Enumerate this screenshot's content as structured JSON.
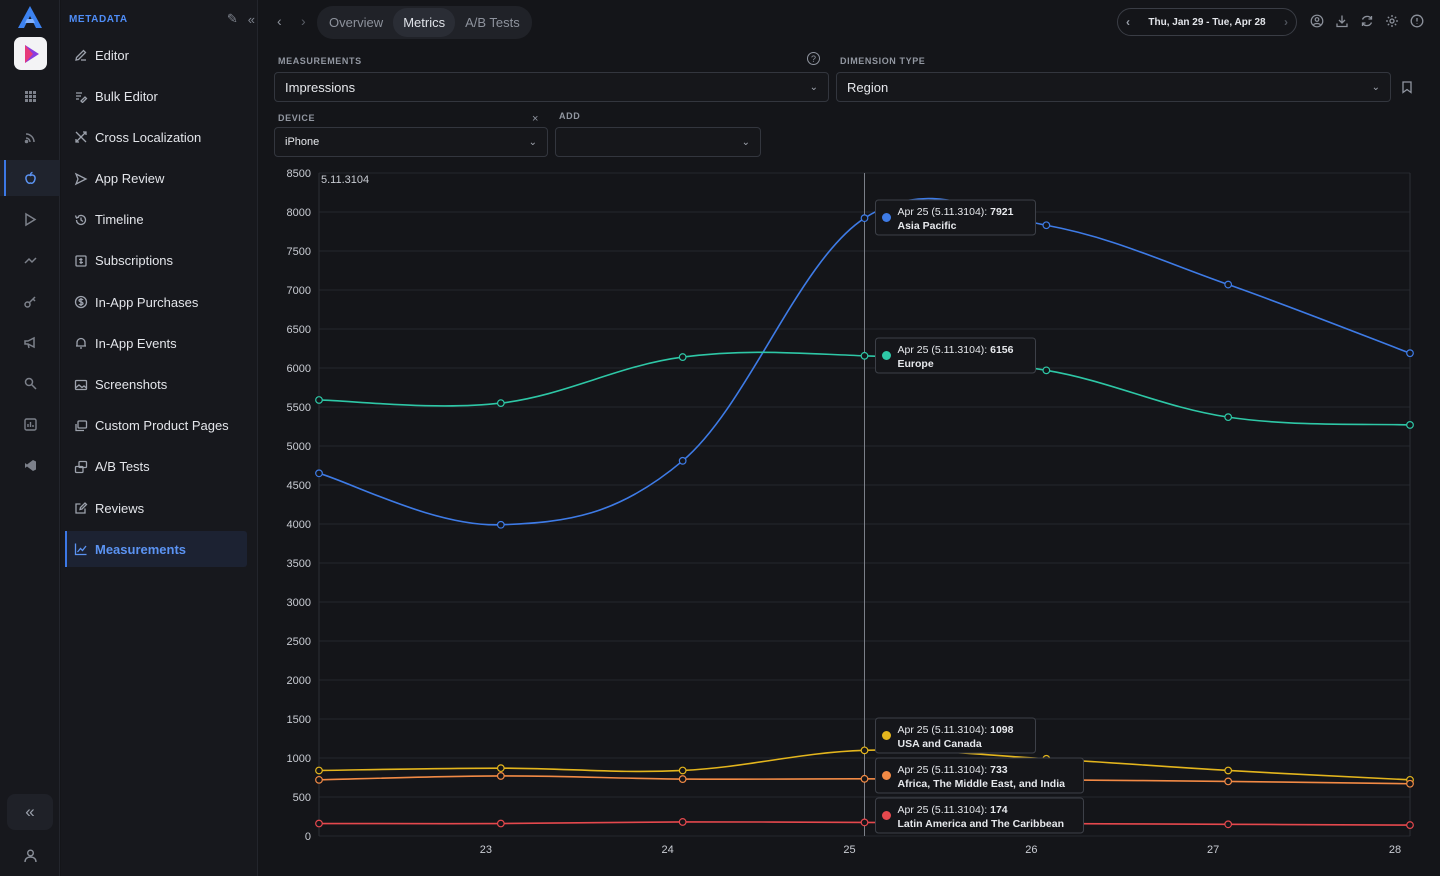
{
  "sidebar": {
    "title": "METADATA",
    "items": [
      {
        "label": "Editor",
        "icon": "pencil-icon"
      },
      {
        "label": "Bulk Editor",
        "icon": "bulk-edit-icon"
      },
      {
        "label": "Cross Localization",
        "icon": "cross-localization-icon"
      },
      {
        "label": "App Review",
        "icon": "send-icon"
      },
      {
        "label": "Timeline",
        "icon": "history-icon"
      },
      {
        "label": "Subscriptions",
        "icon": "subscriptions-icon"
      },
      {
        "label": "In-App Purchases",
        "icon": "dollar-circle-icon"
      },
      {
        "label": "In-App Events",
        "icon": "bell-icon"
      },
      {
        "label": "Screenshots",
        "icon": "image-icon"
      },
      {
        "label": "Custom Product Pages",
        "icon": "layers-icon"
      },
      {
        "label": "A/B Tests",
        "icon": "ab-test-icon"
      },
      {
        "label": "Reviews",
        "icon": "review-icon"
      },
      {
        "label": "Measurements",
        "icon": "line-chart-icon",
        "active": true
      }
    ]
  },
  "topbar": {
    "tabs": [
      "Overview",
      "Metrics",
      "A/B Tests"
    ],
    "active_tab": "Metrics",
    "date_range": "Thu, Jan 29 - Tue, Apr 28"
  },
  "filters": {
    "measurements_label": "MEASUREMENTS",
    "measurements_value": "Impressions",
    "dimension_label": "DIMENSION TYPE",
    "dimension_value": "Region",
    "device_label": "DEVICE",
    "device_value": "iPhone",
    "add_label": "ADD",
    "add_value": ""
  },
  "colors": {
    "accent": "#3c78e6",
    "asia_pacific": "#3e7be6",
    "europe": "#2ec7a6",
    "usa_canada": "#e3b51d",
    "africa_me_india": "#f28a45",
    "latin_america": "#e5484d"
  },
  "chart_data": {
    "type": "line",
    "version_marker": "5.11.3104",
    "x": [
      22,
      23,
      24,
      25,
      26,
      27,
      28
    ],
    "x_tick_labels": [
      "23",
      "24",
      "25",
      "26",
      "27",
      "28"
    ],
    "ylim": [
      0,
      8500
    ],
    "y_ticks": [
      0,
      500,
      1000,
      1500,
      2000,
      2500,
      3000,
      3500,
      4000,
      4500,
      5000,
      5500,
      6000,
      6500,
      7000,
      7500,
      8000,
      8500
    ],
    "grid": true,
    "series": [
      {
        "key": "asia_pacific",
        "name": "Asia Pacific",
        "values": [
          4650,
          3990,
          4810,
          7921,
          7830,
          7070,
          6190
        ]
      },
      {
        "key": "europe",
        "name": "Europe",
        "values": [
          5590,
          5550,
          6140,
          6156,
          5970,
          5370,
          5270
        ]
      },
      {
        "key": "usa_canada",
        "name": "USA and Canada",
        "values": [
          840,
          870,
          840,
          1098,
          990,
          840,
          720
        ]
      },
      {
        "key": "africa_me_india",
        "name": "Africa, The Middle East, and India",
        "values": [
          720,
          770,
          730,
          733,
          720,
          700,
          670
        ]
      },
      {
        "key": "latin_america",
        "name": "Latin America and The Caribbean",
        "values": [
          160,
          160,
          180,
          174,
          160,
          150,
          140
        ]
      }
    ],
    "hover_x": 25,
    "tooltips": [
      {
        "key": "asia_pacific",
        "prefix": "Apr 25 (5.11.3104):",
        "value": "7921",
        "name": "Asia Pacific"
      },
      {
        "key": "europe",
        "prefix": "Apr 25 (5.11.3104):",
        "value": "6156",
        "name": "Europe"
      },
      {
        "key": "usa_canada",
        "prefix": "Apr 25 (5.11.3104):",
        "value": "1098",
        "name": "USA and Canada"
      },
      {
        "key": "africa_me_india",
        "prefix": "Apr 25 (5.11.3104):",
        "value": "733",
        "name": "Africa, The Middle East, and India"
      },
      {
        "key": "latin_america",
        "prefix": "Apr 25 (5.11.3104):",
        "value": "174",
        "name": "Latin America and The Caribbean"
      }
    ]
  }
}
